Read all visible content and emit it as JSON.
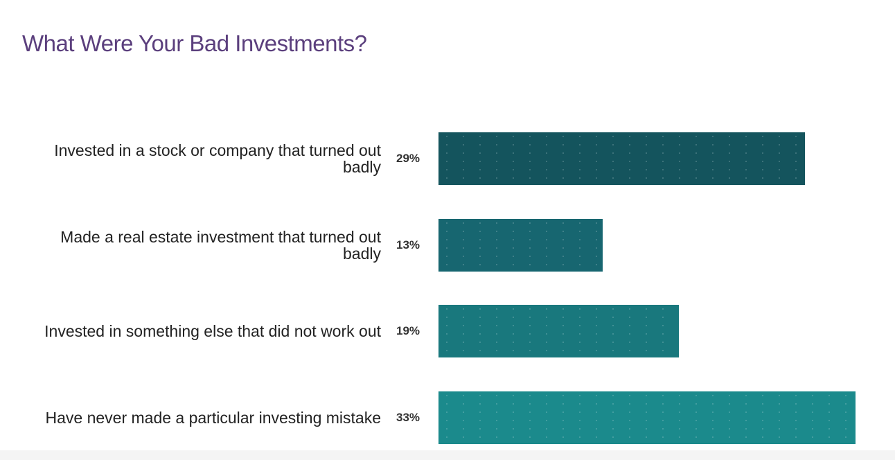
{
  "chart_data": {
    "type": "bar",
    "orientation": "horizontal",
    "title": "What Were Your Bad Investments?",
    "categories": [
      "Invested in a stock or company that turned out badly",
      "Made a real estate investment that turned out badly",
      "Invested in something else that did not work out",
      "Have never made a particular investing mistake"
    ],
    "values": [
      29,
      13,
      19,
      33
    ],
    "value_labels": [
      "29%",
      "13%",
      "19%",
      "33%"
    ],
    "colors": [
      "#14545d",
      "#176670",
      "#19787d",
      "#1b8a8c"
    ]
  }
}
